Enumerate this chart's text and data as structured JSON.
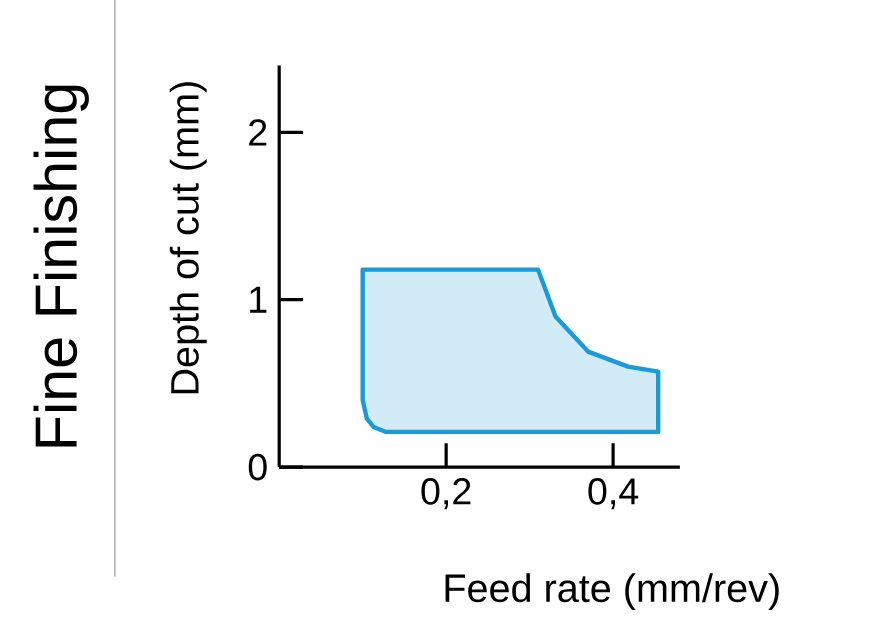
{
  "chart_data": {
    "type": "area",
    "title": "Fine Finishing",
    "xlabel": "Feed rate (mm/rev)",
    "ylabel": "Depth of cut (mm)",
    "xlim": [
      0,
      0.48
    ],
    "ylim": [
      0,
      2.4
    ],
    "xticks": [
      {
        "value": 0.2,
        "label": "0,2"
      },
      {
        "value": 0.4,
        "label": "0,4"
      }
    ],
    "yticks": [
      0,
      1,
      2
    ],
    "series": [
      {
        "color": "#1b9ad8",
        "x": [
          0.1,
          0.2,
          0.31,
          0.331,
          0.37,
          0.418,
          0.454,
          0.454,
          0.3,
          0.2,
          0.128,
          0.113,
          0.105,
          0.1
        ],
        "values": [
          1.18,
          1.18,
          1.18,
          0.9,
          0.69,
          0.6,
          0.57,
          0.21,
          0.21,
          0.21,
          0.21,
          0.24,
          0.29,
          0.4
        ]
      }
    ]
  }
}
